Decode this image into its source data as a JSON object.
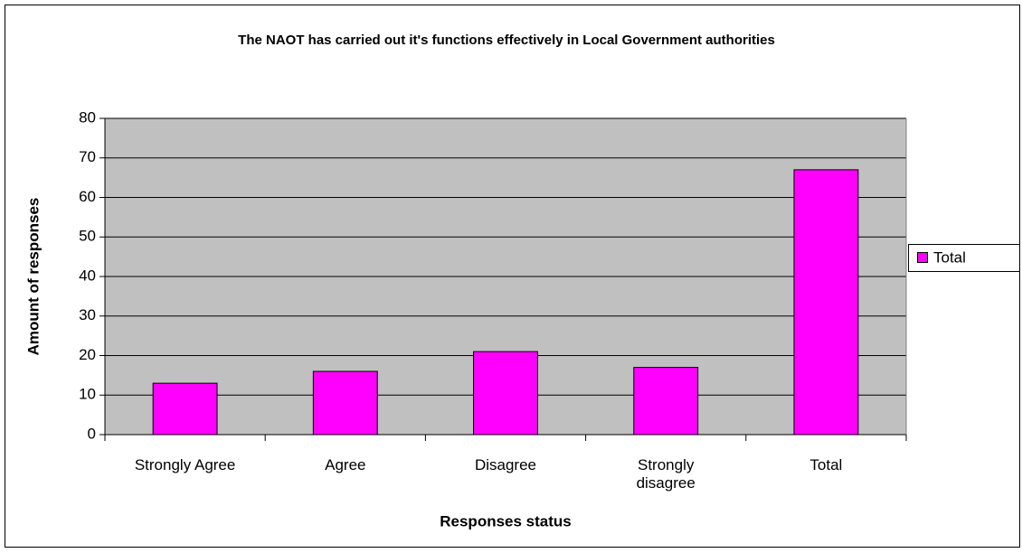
{
  "chart_data": {
    "type": "bar",
    "title": "The NAOT has carried out it's functions effectively in Local Government authorities",
    "xlabel": "Responses status",
    "ylabel": "Amount of responses",
    "categories": [
      "Strongly Agree",
      "Agree",
      "Disagree",
      "Strongly disagree",
      "Total"
    ],
    "series": [
      {
        "name": "Total",
        "color": "#FF00FF",
        "values": [
          13,
          16,
          21,
          17,
          67
        ]
      }
    ],
    "ylim": [
      0,
      80
    ],
    "yticks": [
      0,
      10,
      20,
      30,
      40,
      50,
      60,
      70,
      80
    ],
    "grid": true,
    "legend": "right"
  }
}
